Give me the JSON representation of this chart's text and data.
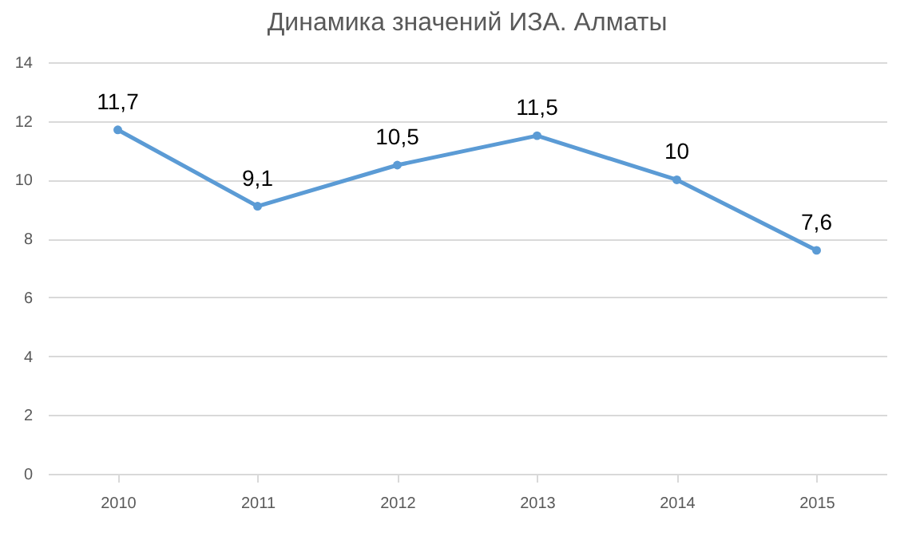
{
  "chart_data": {
    "type": "line",
    "title": "Динамика значений ИЗА. Алматы",
    "categories": [
      "2010",
      "2011",
      "2012",
      "2013",
      "2014",
      "2015"
    ],
    "series": [
      {
        "color": "#5b9bd5",
        "values": [
          11.7,
          9.1,
          10.5,
          11.5,
          10,
          7.6
        ],
        "value_labels": [
          "11,7",
          "9,1",
          "10,5",
          "11,5",
          "10",
          "7,6"
        ]
      }
    ],
    "ylim": [
      0,
      14
    ],
    "yticks": [
      0,
      2,
      4,
      6,
      8,
      10,
      12,
      14
    ],
    "grid": "y",
    "marker": "circle",
    "line_style": "solid"
  }
}
